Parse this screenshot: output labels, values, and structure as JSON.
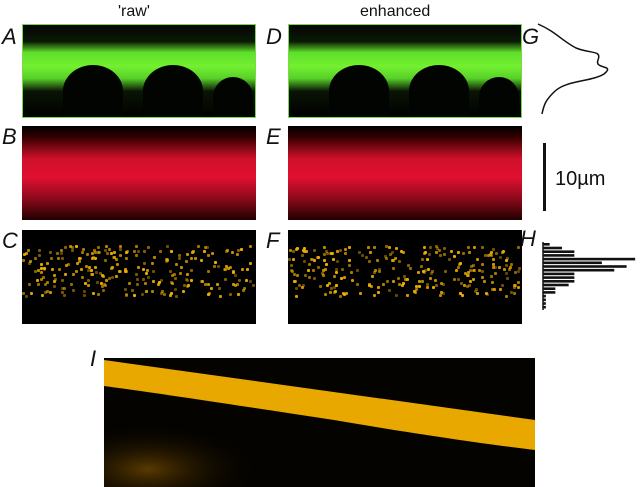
{
  "columns": {
    "raw": "'raw'",
    "enhanced": "enhanced"
  },
  "panel_labels": {
    "A": "A",
    "B": "B",
    "C": "C",
    "D": "D",
    "E": "E",
    "F": "F",
    "G": "G",
    "H": "H",
    "I": "I"
  },
  "scale_bar": {
    "label": "10µm"
  },
  "colors": {
    "green": "#6ee830",
    "red": "#e01030",
    "gold": "#f0b000"
  },
  "chart_data": [
    {
      "type": "line",
      "description_of_axes": "",
      "profile_label": "G"
    },
    {
      "type": "bar",
      "orientation": "horizontal",
      "label": "H",
      "values": [
        7,
        20,
        33,
        33,
        97,
        62,
        88,
        75,
        33,
        33,
        33,
        27,
        13,
        13,
        3,
        3,
        3,
        3
      ]
    }
  ]
}
